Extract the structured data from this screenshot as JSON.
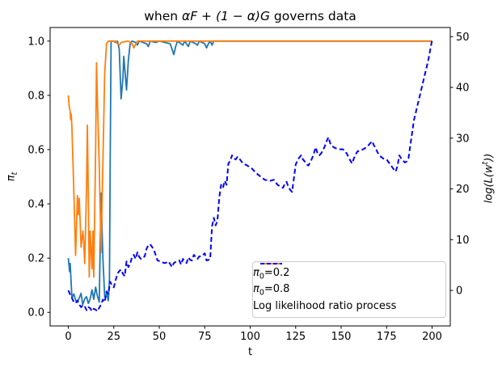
{
  "title": {
    "prefix": "when ",
    "math": "αF + (1 − α)G",
    "suffix": " governs data"
  },
  "axes": {
    "xlabel": "t",
    "ylabel_left": {
      "symbol": "π",
      "sub": "t"
    },
    "ylabel_right": {
      "pre": "log(L(w",
      "sup": "t",
      "post": "))"
    },
    "x_ticks": {
      "values": [
        0,
        25,
        50,
        75,
        100,
        125,
        150,
        175,
        200
      ],
      "labels": [
        "0",
        "25",
        "50",
        "75",
        "100",
        "125",
        "150",
        "175",
        "200"
      ]
    },
    "y_ticks_left": {
      "values": [
        0.0,
        0.2,
        0.4,
        0.6,
        0.8,
        1.0
      ],
      "labels": [
        "0.0",
        "0.2",
        "0.4",
        "0.6",
        "0.8",
        "1.0"
      ]
    },
    "y_ticks_right": {
      "values": [
        0,
        10,
        20,
        30,
        40,
        50
      ],
      "labels": [
        "0",
        "10",
        "20",
        "30",
        "40",
        "50"
      ]
    }
  },
  "legend": {
    "items": [
      {
        "sym": "π",
        "sub": "0",
        "rest": "=0.2",
        "color": "#1f77b4",
        "dash": false
      },
      {
        "sym": "π",
        "sub": "0",
        "rest": "=0.8",
        "color": "#ff7f0e",
        "dash": false
      },
      {
        "sym": "",
        "sub": "",
        "rest": "Log likelihood ratio process",
        "color": "#0000ff",
        "dash": true
      }
    ]
  },
  "chart_data": {
    "type": "line",
    "title": "when αF + (1 − α)G governs data",
    "xlabel": "t",
    "ylabel_left": "π_t",
    "ylabel_right": "log(L(w^t))",
    "xlim": [
      -10,
      210
    ],
    "ylim_left": [
      -0.05,
      1.05
    ],
    "ylim_right": [
      -7,
      51.8
    ],
    "grid": false,
    "legend_position": "lower right",
    "series": [
      {
        "name": "π0=0.2",
        "axis": "left",
        "color": "#1f77b4",
        "style": "solid",
        "linewidth": 1.8,
        "points": [
          [
            0,
            0.2
          ],
          [
            0.7,
            0.15
          ],
          [
            1,
            0.18
          ],
          [
            2,
            0.053
          ],
          [
            3,
            0.068
          ],
          [
            4,
            0.045
          ],
          [
            5,
            0.038
          ],
          [
            6,
            0.053
          ],
          [
            7,
            0.07
          ],
          [
            7.9,
            0.028
          ],
          [
            9,
            0.05
          ],
          [
            10,
            0.058
          ],
          [
            11,
            0.033
          ],
          [
            12,
            0.05
          ],
          [
            13,
            0.083
          ],
          [
            14,
            0.048
          ],
          [
            15,
            0.093
          ],
          [
            16,
            0.06
          ],
          [
            17,
            0.038
          ],
          [
            18,
            0.44
          ],
          [
            19,
            0.2
          ],
          [
            20,
            0.058
          ],
          [
            21,
            0.07
          ],
          [
            22,
            0.043
          ],
          [
            22.6,
            0.12
          ],
          [
            23,
            0.55
          ],
          [
            23.5,
            1.0
          ],
          [
            25,
            1.0
          ],
          [
            26,
            0.995
          ],
          [
            27,
            1.0
          ],
          [
            28,
            0.97
          ],
          [
            29,
            0.787
          ],
          [
            30,
            0.86
          ],
          [
            30.5,
            0.944
          ],
          [
            31,
            0.9
          ],
          [
            32,
            0.82
          ],
          [
            33,
            0.93
          ],
          [
            34,
            0.99
          ],
          [
            35,
            1.0
          ],
          [
            37,
            0.995
          ],
          [
            38,
            0.985
          ],
          [
            39,
            1.0
          ],
          [
            43,
            0.99
          ],
          [
            44,
            0.98
          ],
          [
            45,
            1.0
          ],
          [
            48,
            0.995
          ],
          [
            50,
            1.0
          ],
          [
            56,
            0.99
          ],
          [
            57,
            0.97
          ],
          [
            58,
            0.95
          ],
          [
            59,
            0.98
          ],
          [
            60,
            1.0
          ],
          [
            62,
            0.99
          ],
          [
            63,
            0.985
          ],
          [
            64,
            1.0
          ],
          [
            66,
            0.98
          ],
          [
            67,
            1.0
          ],
          [
            70,
            0.99
          ],
          [
            71,
            0.985
          ],
          [
            72,
            1.0
          ],
          [
            75,
            0.99
          ],
          [
            76,
            0.975
          ],
          [
            77,
            0.99
          ],
          [
            78,
            1.0
          ],
          [
            79,
            0.985
          ],
          [
            80,
            1.0
          ],
          [
            100,
            1.0
          ],
          [
            130,
            1.0
          ],
          [
            160,
            1.0
          ],
          [
            200,
            1.0
          ]
        ]
      },
      {
        "name": "π0=0.8",
        "axis": "left",
        "color": "#ff7f0e",
        "style": "solid",
        "linewidth": 1.8,
        "points": [
          [
            0,
            0.8
          ],
          [
            0.5,
            0.76
          ],
          [
            1,
            0.74
          ],
          [
            1.3,
            0.71
          ],
          [
            1.6,
            0.73
          ],
          [
            2,
            0.68
          ],
          [
            3,
            0.45
          ],
          [
            4,
            0.21
          ],
          [
            5,
            0.43
          ],
          [
            5.5,
            0.36
          ],
          [
            6,
            0.42
          ],
          [
            6.5,
            0.34
          ],
          [
            7,
            0.24
          ],
          [
            8,
            0.3
          ],
          [
            8.5,
            0.26
          ],
          [
            9,
            0.18
          ],
          [
            10,
            0.45
          ],
          [
            10.5,
            0.69
          ],
          [
            11,
            0.42
          ],
          [
            11.5,
            0.13
          ],
          [
            12,
            0.3
          ],
          [
            13,
            0.16
          ],
          [
            13.5,
            0.3
          ],
          [
            14,
            0.13
          ],
          [
            15,
            0.6
          ],
          [
            15.5,
            0.92
          ],
          [
            16,
            0.78
          ],
          [
            17,
            0.54
          ],
          [
            18,
            0.22
          ],
          [
            19,
            0.55
          ],
          [
            20,
            0.88
          ],
          [
            21,
            0.99
          ],
          [
            22,
            1.0
          ],
          [
            26,
            1.0
          ],
          [
            27,
            0.99
          ],
          [
            28,
            0.985
          ],
          [
            29,
            0.995
          ],
          [
            33,
            1.0
          ],
          [
            35,
            0.99
          ],
          [
            36,
            0.975
          ],
          [
            37,
            0.99
          ],
          [
            38,
            1.0
          ],
          [
            70,
            1.0
          ],
          [
            120,
            1.0
          ],
          [
            160,
            1.0
          ],
          [
            200,
            1.0
          ]
        ]
      },
      {
        "name": "Log likelihood ratio process",
        "axis": "right",
        "color": "#0000ff",
        "style": "dashed",
        "linewidth": 2,
        "points": [
          [
            0,
            0
          ],
          [
            1,
            -0.8
          ],
          [
            2,
            -1.5
          ],
          [
            3,
            -2.3
          ],
          [
            4,
            -2.5
          ],
          [
            5,
            -2.0
          ],
          [
            6,
            -2.8
          ],
          [
            7,
            -3.3
          ],
          [
            8,
            -2.9
          ],
          [
            9,
            -3.1
          ],
          [
            10,
            -3.9
          ],
          [
            11,
            -3.3
          ],
          [
            12,
            -3.5
          ],
          [
            13,
            -4.1
          ],
          [
            14,
            -3.6
          ],
          [
            15,
            -3.8
          ],
          [
            16,
            -4.1
          ],
          [
            17,
            -3.4
          ],
          [
            18,
            -2.8
          ],
          [
            19,
            -1.8
          ],
          [
            20,
            -2.3
          ],
          [
            21,
            -0.2
          ],
          [
            22,
            -0.7
          ],
          [
            23,
            1.7
          ],
          [
            24,
            1.0
          ],
          [
            25,
            0.6
          ],
          [
            26,
            2.0
          ],
          [
            27,
            3.3
          ],
          [
            28,
            3.8
          ],
          [
            29,
            4.1
          ],
          [
            30,
            3.3
          ],
          [
            31,
            2.8
          ],
          [
            32,
            5.7
          ],
          [
            33,
            4.6
          ],
          [
            34,
            5.2
          ],
          [
            35,
            6.6
          ],
          [
            36,
            7.0
          ],
          [
            37,
            6.2
          ],
          [
            38,
            7.5
          ],
          [
            39,
            6.6
          ],
          [
            40,
            6.2
          ],
          [
            41,
            6.5
          ],
          [
            42,
            6.7
          ],
          [
            43,
            8.2
          ],
          [
            44,
            8.9
          ],
          [
            45,
            9.1
          ],
          [
            46,
            8.6
          ],
          [
            47,
            8.0
          ],
          [
            48,
            7.0
          ],
          [
            49,
            5.9
          ],
          [
            50,
            5.8
          ],
          [
            51,
            5.7
          ],
          [
            52,
            5.5
          ],
          [
            53,
            5.4
          ],
          [
            54,
            5.5
          ],
          [
            55,
            5.7
          ],
          [
            56,
            5.2
          ],
          [
            57,
            4.6
          ],
          [
            58,
            5.4
          ],
          [
            59,
            5.6
          ],
          [
            60,
            5.8
          ],
          [
            61,
            5.9
          ],
          [
            62,
            5.1
          ],
          [
            63,
            6.2
          ],
          [
            64,
            5.8
          ],
          [
            65,
            5.4
          ],
          [
            66,
            6.5
          ],
          [
            67,
            6.0
          ],
          [
            68,
            5.9
          ],
          [
            69,
            7.0
          ],
          [
            70,
            6.6
          ],
          [
            71,
            6.2
          ],
          [
            72,
            6.7
          ],
          [
            73,
            6.7
          ],
          [
            74,
            7.0
          ],
          [
            75,
            7.3
          ],
          [
            76,
            5.9
          ],
          [
            77,
            6.0
          ],
          [
            78,
            6.2
          ],
          [
            79,
            12.6
          ],
          [
            80,
            14.3
          ],
          [
            81,
            12.8
          ],
          [
            82,
            13.8
          ],
          [
            83,
            18.4
          ],
          [
            84,
            20.8
          ],
          [
            85,
            20.2
          ],
          [
            86,
            21.6
          ],
          [
            87,
            20.8
          ],
          [
            88,
            25.0
          ],
          [
            89,
            25.5
          ],
          [
            90,
            26.6
          ],
          [
            91,
            26.0
          ],
          [
            92,
            25.8
          ],
          [
            93,
            26.3
          ],
          [
            94,
            26.0
          ],
          [
            96,
            25.0
          ],
          [
            98,
            24.7
          ],
          [
            100,
            24.2
          ],
          [
            101,
            24.0
          ],
          [
            103,
            23.2
          ],
          [
            105,
            22.6
          ],
          [
            108,
            21.8
          ],
          [
            111,
            21.6
          ],
          [
            113,
            21.8
          ],
          [
            115,
            20.8
          ],
          [
            117,
            20.4
          ],
          [
            118,
            20.2
          ],
          [
            119,
            21.0
          ],
          [
            120,
            21.4
          ],
          [
            121,
            20.4
          ],
          [
            122,
            19.8
          ],
          [
            123,
            19.4
          ],
          [
            124,
            22.0
          ],
          [
            125,
            24.8
          ],
          [
            126,
            25.6
          ],
          [
            127,
            26.2
          ],
          [
            128,
            26.6
          ],
          [
            129,
            25.8
          ],
          [
            130,
            25.4
          ],
          [
            131,
            24.8
          ],
          [
            132,
            24.6
          ],
          [
            134,
            26.0
          ],
          [
            135,
            27.0
          ],
          [
            136,
            28.2
          ],
          [
            137,
            27.0
          ],
          [
            138,
            26.6
          ],
          [
            139,
            27.0
          ],
          [
            140,
            27.6
          ],
          [
            141,
            28.4
          ],
          [
            142,
            29.4
          ],
          [
            143,
            30.2
          ],
          [
            144,
            29.0
          ],
          [
            145,
            28.4
          ],
          [
            147,
            28.0
          ],
          [
            149,
            27.8
          ],
          [
            151,
            27.8
          ],
          [
            153,
            27.0
          ],
          [
            155,
            25.6
          ],
          [
            156,
            25.0
          ],
          [
            157,
            26.0
          ],
          [
            158,
            26.8
          ],
          [
            159,
            27.4
          ],
          [
            161,
            27.6
          ],
          [
            163,
            28.0
          ],
          [
            165,
            28.6
          ],
          [
            166,
            29.0
          ],
          [
            167,
            29.4
          ],
          [
            168,
            28.6
          ],
          [
            169,
            28.0
          ],
          [
            170,
            27.2
          ],
          [
            171,
            26.6
          ],
          [
            173,
            26.0
          ],
          [
            175,
            25.8
          ],
          [
            177,
            24.8
          ],
          [
            179,
            23.8
          ],
          [
            180,
            23.4
          ],
          [
            181,
            24.6
          ],
          [
            182,
            26.6
          ],
          [
            183,
            26.0
          ],
          [
            184,
            25.6
          ],
          [
            185,
            25.2
          ],
          [
            186,
            25.4
          ],
          [
            187,
            26.0
          ],
          [
            188,
            28.5
          ],
          [
            189,
            31.0
          ],
          [
            190,
            33.5
          ],
          [
            191,
            35.0
          ],
          [
            192,
            36.5
          ],
          [
            193,
            38.0
          ],
          [
            194,
            39.5
          ],
          [
            195,
            41.0
          ],
          [
            196,
            42.5
          ],
          [
            197,
            44.0
          ],
          [
            198,
            45.5
          ],
          [
            199,
            47.5
          ],
          [
            200,
            49.3
          ]
        ]
      }
    ]
  }
}
